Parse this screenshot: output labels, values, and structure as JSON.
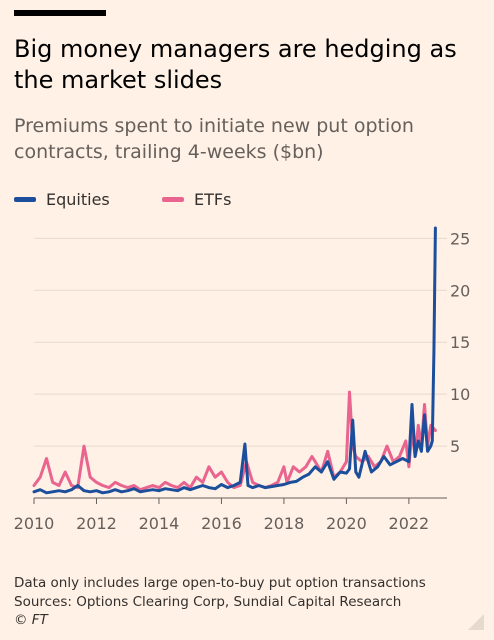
{
  "title": "Big money managers are hedging as the market slides",
  "subtitle": "Premiums spent to initiate new put option contracts, trailing 4-weeks ($bn)",
  "footer": {
    "note": "Data only includes large open-to-buy put option transactions",
    "sources": "Sources: Options Clearing Corp, Sundial Capital Research",
    "copyright": "© FT"
  },
  "colors": {
    "background": "#fff1e5",
    "equities": "#1b4f9c",
    "etfs": "#e9648f",
    "grid": "#e6d9ce",
    "axis": "#66605c"
  },
  "chart_data": {
    "type": "line",
    "title": "Big money managers are hedging as the market slides",
    "subtitle": "Premiums spent to initiate new put option contracts, trailing 4-weeks ($bn)",
    "xlabel": "",
    "ylabel": "",
    "xlim": [
      2010,
      2022.9
    ],
    "ylim": [
      0,
      26
    ],
    "y_axis_position": "right",
    "x_ticks": [
      "2010",
      "2012",
      "2014",
      "2016",
      "2018",
      "2020",
      "2022"
    ],
    "y_ticks": [
      "5",
      "10",
      "15",
      "20",
      "25"
    ],
    "grid": "horizontal",
    "legend": "top-left",
    "series": [
      {
        "name": "Equities",
        "color": "#1b4f9c",
        "x": [
          2010.0,
          2010.2,
          2010.4,
          2010.6,
          2010.8,
          2011.0,
          2011.2,
          2011.4,
          2011.6,
          2011.8,
          2012.0,
          2012.2,
          2012.4,
          2012.6,
          2012.8,
          2013.0,
          2013.2,
          2013.4,
          2013.6,
          2013.8,
          2014.0,
          2014.2,
          2014.4,
          2014.6,
          2014.8,
          2015.0,
          2015.2,
          2015.4,
          2015.6,
          2015.8,
          2016.0,
          2016.2,
          2016.4,
          2016.6,
          2016.75,
          2016.85,
          2017.0,
          2017.2,
          2017.4,
          2017.6,
          2017.8,
          2018.0,
          2018.2,
          2018.4,
          2018.6,
          2018.8,
          2019.0,
          2019.2,
          2019.4,
          2019.6,
          2019.8,
          2020.0,
          2020.1,
          2020.2,
          2020.3,
          2020.4,
          2020.6,
          2020.8,
          2021.0,
          2021.2,
          2021.4,
          2021.6,
          2021.8,
          2022.0,
          2022.1,
          2022.2,
          2022.3,
          2022.4,
          2022.5,
          2022.6,
          2022.7,
          2022.75,
          2022.8,
          2022.85
        ],
        "values": [
          0.6,
          0.8,
          0.5,
          0.6,
          0.7,
          0.6,
          0.8,
          1.2,
          0.7,
          0.6,
          0.7,
          0.5,
          0.6,
          0.8,
          0.6,
          0.7,
          0.9,
          0.6,
          0.7,
          0.8,
          0.7,
          0.9,
          0.8,
          0.7,
          1.0,
          0.8,
          1.0,
          1.2,
          1.0,
          0.9,
          1.3,
          1.0,
          1.2,
          1.5,
          5.2,
          1.2,
          1.0,
          1.2,
          1.0,
          1.1,
          1.2,
          1.3,
          1.5,
          1.6,
          2.0,
          2.3,
          3.0,
          2.5,
          3.5,
          1.8,
          2.5,
          2.4,
          2.8,
          7.5,
          2.5,
          2.0,
          4.5,
          2.5,
          3.0,
          4.0,
          3.2,
          3.5,
          3.8,
          3.5,
          9.0,
          4.0,
          5.5,
          4.5,
          8.0,
          4.5,
          5.0,
          5.5,
          14.0,
          26.0
        ]
      },
      {
        "name": "ETFs",
        "color": "#e9648f",
        "x": [
          2010.0,
          2010.2,
          2010.4,
          2010.6,
          2010.8,
          2011.0,
          2011.2,
          2011.4,
          2011.6,
          2011.8,
          2012.0,
          2012.2,
          2012.4,
          2012.6,
          2012.8,
          2013.0,
          2013.2,
          2013.4,
          2013.6,
          2013.8,
          2014.0,
          2014.2,
          2014.4,
          2014.6,
          2014.8,
          2015.0,
          2015.2,
          2015.4,
          2015.6,
          2015.8,
          2016.0,
          2016.2,
          2016.4,
          2016.6,
          2016.8,
          2017.0,
          2017.2,
          2017.4,
          2017.6,
          2017.8,
          2018.0,
          2018.1,
          2018.3,
          2018.5,
          2018.7,
          2018.9,
          2019.0,
          2019.2,
          2019.4,
          2019.6,
          2019.8,
          2020.0,
          2020.1,
          2020.2,
          2020.3,
          2020.5,
          2020.7,
          2020.9,
          2021.1,
          2021.3,
          2021.5,
          2021.7,
          2021.9,
          2022.0,
          2022.1,
          2022.2,
          2022.3,
          2022.4,
          2022.5,
          2022.6,
          2022.7,
          2022.85
        ],
        "values": [
          1.2,
          2.0,
          3.8,
          1.5,
          1.2,
          2.5,
          1.2,
          1.0,
          5.0,
          2.0,
          1.5,
          1.2,
          1.0,
          1.5,
          1.2,
          1.0,
          1.2,
          0.8,
          1.0,
          1.2,
          1.0,
          1.5,
          1.2,
          1.0,
          1.5,
          1.0,
          2.0,
          1.5,
          3.0,
          2.0,
          2.5,
          1.5,
          1.0,
          1.2,
          3.5,
          1.5,
          1.2,
          1.0,
          1.2,
          1.5,
          3.0,
          1.5,
          3.0,
          2.5,
          3.0,
          4.0,
          3.5,
          2.5,
          4.5,
          2.0,
          2.5,
          3.5,
          10.2,
          5.0,
          4.0,
          3.5,
          4.0,
          3.0,
          3.5,
          5.0,
          3.5,
          4.0,
          5.5,
          3.0,
          6.5,
          4.0,
          7.0,
          5.0,
          9.0,
          5.0,
          7.0,
          6.5
        ]
      }
    ]
  }
}
